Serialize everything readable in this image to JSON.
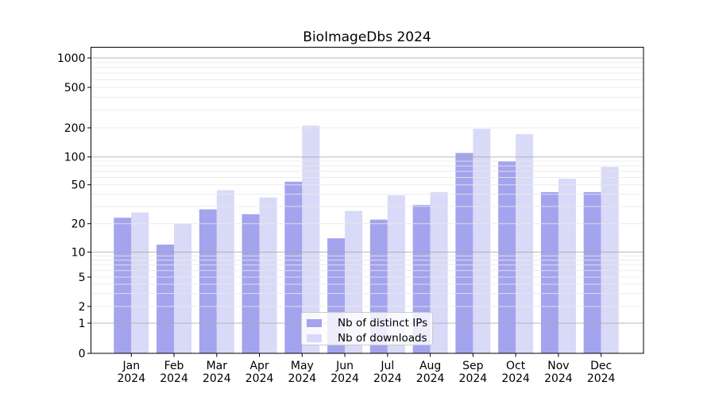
{
  "title": "BioImageDbs 2024",
  "chart_data": {
    "type": "bar",
    "title": "BioImageDbs 2024",
    "xlabel": "",
    "ylabel": "",
    "yscale": "symlog",
    "ylim": [
      0,
      1250
    ],
    "grid": "major and minor horizontal gridlines, log-spaced",
    "legend_position": "lower center",
    "yticks": [
      0,
      1,
      2,
      5,
      10,
      20,
      50,
      100,
      200,
      500,
      1000
    ],
    "categories": [
      "Jan",
      "Feb",
      "Mar",
      "Apr",
      "May",
      "Jun",
      "Jul",
      "Aug",
      "Sep",
      "Oct",
      "Nov",
      "Dec"
    ],
    "year_label": "2024",
    "series": [
      {
        "name": "Nb of distinct IPs",
        "color": "#a3a3ee",
        "values": [
          23,
          12,
          28,
          25,
          54,
          14,
          22,
          31,
          110,
          90,
          42,
          42
        ]
      },
      {
        "name": "Nb of downloads",
        "color": "#d9d9f8",
        "values": [
          26,
          20,
          44,
          37,
          210,
          27,
          39,
          42,
          195,
          172,
          58,
          78
        ]
      }
    ]
  },
  "colors": {
    "axis": "#000000",
    "major_grid": "#a8a8a8",
    "minor_grid": "#e9e9e9",
    "background": "#ffffff"
  }
}
